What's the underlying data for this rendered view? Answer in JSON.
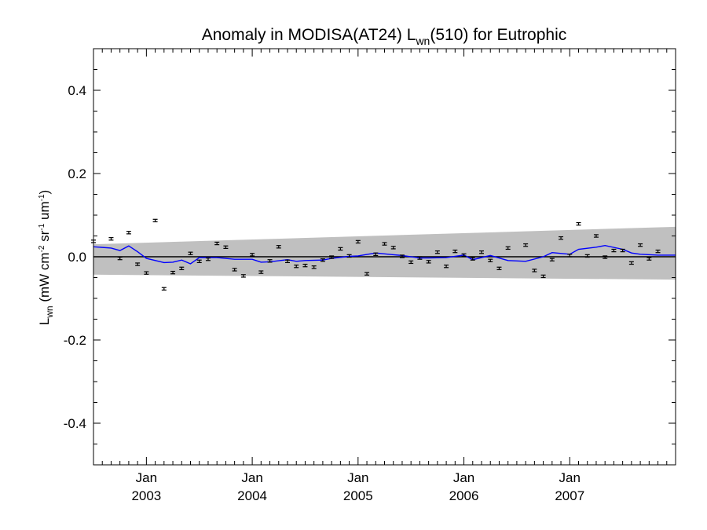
{
  "chart_data": {
    "type": "scatter",
    "title": {
      "prefix": "Anomaly in MODISA(AT24) L",
      "sub": "wn",
      "suffix": "(510) for Eutrophic"
    },
    "ylabel": {
      "main": "L",
      "sub": "wn",
      "open": " (mW cm",
      "exp1": "-2",
      "mid": " sr",
      "exp2": "-1",
      "mid2": " um",
      "exp3": "-1",
      "close": ")"
    },
    "xlim": [
      "2002-07",
      "2008-01"
    ],
    "ylim": [
      -0.5,
      0.5
    ],
    "yticks": [
      {
        "value": 0.4,
        "label": "0.4"
      },
      {
        "value": 0.2,
        "label": "0.2"
      },
      {
        "value": 0.0,
        "label": "0.0"
      },
      {
        "value": -0.2,
        "label": "-0.2"
      },
      {
        "value": -0.4,
        "label": "-0.4"
      }
    ],
    "xticks": [
      {
        "value": "2003-01",
        "month": "Jan",
        "year": "2003"
      },
      {
        "value": "2004-01",
        "month": "Jan",
        "year": "2004"
      },
      {
        "value": "2005-01",
        "month": "Jan",
        "year": "2005"
      },
      {
        "value": "2006-01",
        "month": "Jan",
        "year": "2006"
      },
      {
        "value": "2007-01",
        "month": "Jan",
        "year": "2007"
      }
    ],
    "points": [
      {
        "x": "2002-07",
        "y": 0.037
      },
      {
        "x": "2002-09",
        "y": 0.043
      },
      {
        "x": "2002-10",
        "y": -0.004
      },
      {
        "x": "2002-11",
        "y": 0.058
      },
      {
        "x": "2002-12",
        "y": -0.018
      },
      {
        "x": "2003-01",
        "y": -0.039
      },
      {
        "x": "2003-02",
        "y": 0.087
      },
      {
        "x": "2003-03",
        "y": -0.077
      },
      {
        "x": "2003-04",
        "y": -0.038
      },
      {
        "x": "2003-05",
        "y": -0.028
      },
      {
        "x": "2003-06",
        "y": 0.008
      },
      {
        "x": "2003-07",
        "y": -0.011
      },
      {
        "x": "2003-08",
        "y": -0.006
      },
      {
        "x": "2003-09",
        "y": 0.032
      },
      {
        "x": "2003-10",
        "y": 0.023
      },
      {
        "x": "2003-11",
        "y": -0.031
      },
      {
        "x": "2003-12",
        "y": -0.046
      },
      {
        "x": "2004-01",
        "y": 0.005
      },
      {
        "x": "2004-02",
        "y": -0.037
      },
      {
        "x": "2004-03",
        "y": -0.01
      },
      {
        "x": "2004-04",
        "y": 0.024
      },
      {
        "x": "2004-05",
        "y": -0.011
      },
      {
        "x": "2004-06",
        "y": -0.023
      },
      {
        "x": "2004-07",
        "y": -0.021
      },
      {
        "x": "2004-08",
        "y": -0.025
      },
      {
        "x": "2004-09",
        "y": -0.008
      },
      {
        "x": "2004-10",
        "y": -0.001
      },
      {
        "x": "2004-11",
        "y": 0.019
      },
      {
        "x": "2004-12",
        "y": 0.002
      },
      {
        "x": "2005-01",
        "y": 0.036
      },
      {
        "x": "2005-02",
        "y": -0.041
      },
      {
        "x": "2005-03",
        "y": 0.006
      },
      {
        "x": "2005-04",
        "y": 0.031
      },
      {
        "x": "2005-05",
        "y": 0.022
      },
      {
        "x": "2005-06",
        "y": 0.001
      },
      {
        "x": "2005-07",
        "y": -0.013
      },
      {
        "x": "2005-08",
        "y": -0.003
      },
      {
        "x": "2005-09",
        "y": -0.012
      },
      {
        "x": "2005-10",
        "y": 0.011
      },
      {
        "x": "2005-11",
        "y": -0.023
      },
      {
        "x": "2005-12",
        "y": 0.013
      },
      {
        "x": "2006-01",
        "y": 0.004
      },
      {
        "x": "2006-02",
        "y": -0.005
      },
      {
        "x": "2006-03",
        "y": 0.011
      },
      {
        "x": "2006-04",
        "y": -0.009
      },
      {
        "x": "2006-05",
        "y": -0.028
      },
      {
        "x": "2006-06",
        "y": 0.021
      },
      {
        "x": "2006-08",
        "y": 0.028
      },
      {
        "x": "2006-09",
        "y": -0.033
      },
      {
        "x": "2006-10",
        "y": -0.047
      },
      {
        "x": "2006-11",
        "y": -0.007
      },
      {
        "x": "2006-12",
        "y": 0.045
      },
      {
        "x": "2007-01",
        "y": 0.003
      },
      {
        "x": "2007-02",
        "y": 0.079
      },
      {
        "x": "2007-03",
        "y": 0.002
      },
      {
        "x": "2007-04",
        "y": 0.05
      },
      {
        "x": "2007-05",
        "y": -0.001
      },
      {
        "x": "2007-06",
        "y": 0.015
      },
      {
        "x": "2007-07",
        "y": 0.015
      },
      {
        "x": "2007-08",
        "y": -0.015
      },
      {
        "x": "2007-09",
        "y": 0.028
      },
      {
        "x": "2007-10",
        "y": -0.005
      },
      {
        "x": "2007-11",
        "y": 0.013
      }
    ],
    "running_mean": [
      {
        "x": "2002-07",
        "y": 0.024
      },
      {
        "x": "2002-09",
        "y": 0.021
      },
      {
        "x": "2002-10",
        "y": 0.015
      },
      {
        "x": "2002-11",
        "y": 0.026
      },
      {
        "x": "2002-12",
        "y": 0.012
      },
      {
        "x": "2003-01",
        "y": -0.004
      },
      {
        "x": "2003-03",
        "y": -0.014
      },
      {
        "x": "2003-04",
        "y": -0.013
      },
      {
        "x": "2003-05",
        "y": -0.008
      },
      {
        "x": "2003-06",
        "y": -0.017
      },
      {
        "x": "2003-07",
        "y": -0.002
      },
      {
        "x": "2003-09",
        "y": -0.002
      },
      {
        "x": "2003-11",
        "y": -0.006
      },
      {
        "x": "2004-01",
        "y": -0.006
      },
      {
        "x": "2004-02",
        "y": -0.013
      },
      {
        "x": "2004-03",
        "y": -0.012
      },
      {
        "x": "2004-05",
        "y": -0.007
      },
      {
        "x": "2004-06",
        "y": -0.011
      },
      {
        "x": "2004-07",
        "y": -0.009
      },
      {
        "x": "2004-09",
        "y": -0.008
      },
      {
        "x": "2004-10",
        "y": -0.004
      },
      {
        "x": "2004-12",
        "y": 0.001
      },
      {
        "x": "2005-01",
        "y": 0.002
      },
      {
        "x": "2005-03",
        "y": 0.009
      },
      {
        "x": "2005-05",
        "y": 0.005
      },
      {
        "x": "2005-06",
        "y": 0.003
      },
      {
        "x": "2005-08",
        "y": -0.003
      },
      {
        "x": "2005-09",
        "y": -0.003
      },
      {
        "x": "2005-11",
        "y": -0.002
      },
      {
        "x": "2006-01",
        "y": 0.004
      },
      {
        "x": "2006-02",
        "y": -0.007
      },
      {
        "x": "2006-04",
        "y": 0.003
      },
      {
        "x": "2006-06",
        "y": -0.009
      },
      {
        "x": "2006-08",
        "y": -0.011
      },
      {
        "x": "2006-10",
        "y": 0.0
      },
      {
        "x": "2006-11",
        "y": 0.01
      },
      {
        "x": "2007-01",
        "y": 0.006
      },
      {
        "x": "2007-02",
        "y": 0.018
      },
      {
        "x": "2007-04",
        "y": 0.023
      },
      {
        "x": "2007-05",
        "y": 0.027
      },
      {
        "x": "2007-07",
        "y": 0.018
      },
      {
        "x": "2007-08",
        "y": 0.009
      },
      {
        "x": "2007-09",
        "y": 0.006
      },
      {
        "x": "2007-11",
        "y": 0.004
      },
      {
        "x": "2008-01",
        "y": 0.004
      }
    ],
    "error_band": {
      "start": {
        "x": "2002-07",
        "upper": 0.03,
        "lower": -0.043
      },
      "end": {
        "x": "2008-01",
        "upper": 0.072,
        "lower": -0.055
      }
    },
    "zero_line": 0.0,
    "error_bar_halfwidth": 0.003,
    "colors": {
      "points": "#000000",
      "running_mean": "#0000ff",
      "error_band": "#c0c0c0",
      "zero_line": "#000000",
      "axes": "#000000"
    }
  }
}
